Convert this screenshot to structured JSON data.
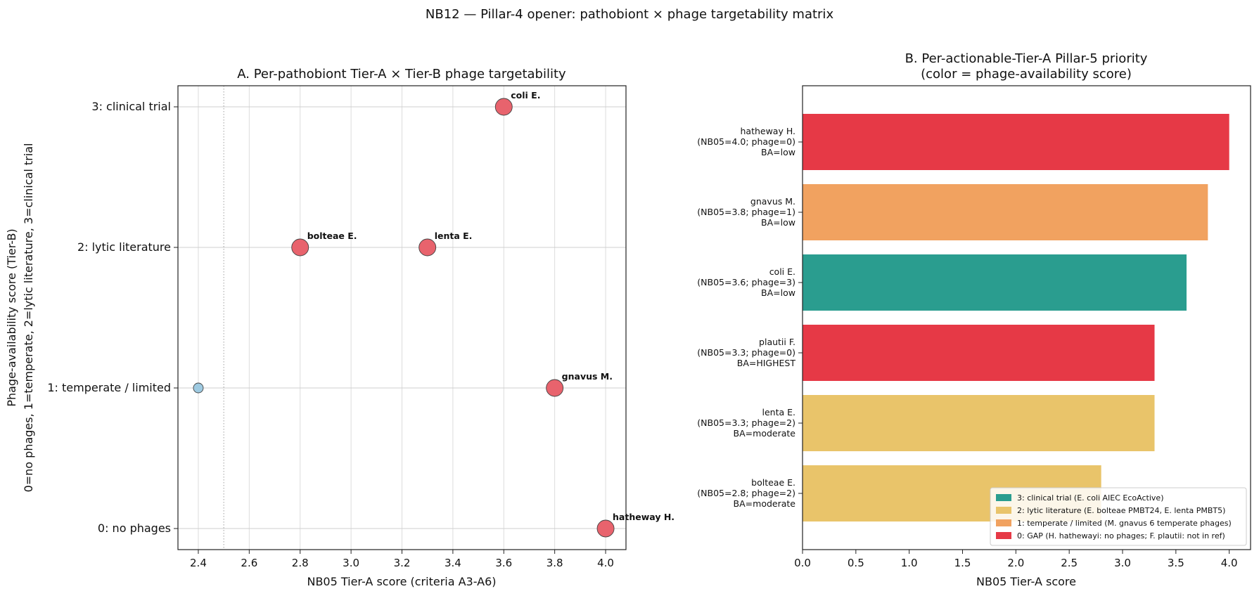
{
  "figure": {
    "suptitle": "NB12 — Pillar-4 opener: pathobiont × phage targetability matrix"
  },
  "chart_data": [
    {
      "panel": "A",
      "type": "scatter",
      "title": "A. Per-pathobiont Tier-A × Tier-B phage targetability",
      "xlabel": "NB05 Tier-A score (criteria A3-A6)",
      "ylabel_line1": "Phage-availability score (Tier-B)",
      "ylabel_line2": "0=no phages, 1=temperate, 2=lytic literature, 3=clinical trial",
      "xlim": [
        2.32,
        4.08
      ],
      "ylim": [
        -0.15,
        3.15
      ],
      "xticks": [
        2.4,
        2.6,
        2.8,
        3.0,
        3.2,
        3.4,
        3.6,
        3.8,
        4.0
      ],
      "yticks": [
        {
          "value": 0,
          "label": "0: no phages"
        },
        {
          "value": 1,
          "label": "1: temperate / limited"
        },
        {
          "value": 2,
          "label": "2: lytic literature"
        },
        {
          "value": 3,
          "label": "3: clinical trial"
        }
      ],
      "grid": true,
      "vline_dotted_x": 2.5,
      "points": [
        {
          "x": 3.6,
          "y": 3,
          "label": "coli E.",
          "color": "#e8636d",
          "size": "large"
        },
        {
          "x": 2.8,
          "y": 2,
          "label": "bolteae E.",
          "color": "#e8636d",
          "size": "large"
        },
        {
          "x": 3.3,
          "y": 2,
          "label": "lenta E.",
          "color": "#e8636d",
          "size": "large"
        },
        {
          "x": 3.8,
          "y": 1,
          "label": "gnavus M.",
          "color": "#e8636d",
          "size": "large"
        },
        {
          "x": 4.0,
          "y": 0,
          "label": "hatheway H.",
          "color": "#e8636d",
          "size": "large"
        },
        {
          "x": 2.4,
          "y": 1,
          "label": "",
          "color": "#9ecae1",
          "size": "small"
        }
      ]
    },
    {
      "panel": "B",
      "type": "bar",
      "orientation": "horizontal",
      "title_line1": "B. Per-actionable-Tier-A Pillar-5 priority",
      "title_line2": "(color = phage-availability score)",
      "xlabel": "NB05 Tier-A score",
      "xlim": [
        0,
        4.2
      ],
      "xticks": [
        "0.0",
        "0.5",
        "1.0",
        "1.5",
        "2.0",
        "2.5",
        "3.0",
        "3.5",
        "4.0"
      ],
      "bars": [
        {
          "name": "hatheway H.",
          "detail": "(NB05=4.0; phage=0)",
          "ba": "BA=low",
          "value": 4.0,
          "color": "#e63946"
        },
        {
          "name": "gnavus M.",
          "detail": "(NB05=3.8; phage=1)",
          "ba": "BA=low",
          "value": 3.8,
          "color": "#f1a260"
        },
        {
          "name": "coli E.",
          "detail": "(NB05=3.6; phage=3)",
          "ba": "BA=low",
          "value": 3.6,
          "color": "#2a9d8f"
        },
        {
          "name": "plautii F.",
          "detail": "(NB05=3.3; phage=0)",
          "ba": "BA=HIGHEST",
          "value": 3.3,
          "color": "#e63946"
        },
        {
          "name": "lenta E.",
          "detail": "(NB05=3.3; phage=2)",
          "ba": "BA=moderate",
          "value": 3.3,
          "color": "#e9c46a"
        },
        {
          "name": "bolteae E.",
          "detail": "(NB05=2.8; phage=2)",
          "ba": "BA=moderate",
          "value": 2.8,
          "color": "#e9c46a"
        }
      ],
      "legend_position": "lower-right",
      "legend": [
        {
          "label": "3: clinical trial (E. coli AIEC EcoActive)",
          "color": "#2a9d8f"
        },
        {
          "label": "2: lytic literature (E. bolteae PMBT24, E. lenta PMBT5)",
          "color": "#e9c46a"
        },
        {
          "label": "1: temperate / limited (M. gnavus 6 temperate phages)",
          "color": "#f1a260"
        },
        {
          "label": "0: GAP (H. hathewayi: no phages; F. plautii: not in ref)",
          "color": "#e63946"
        }
      ]
    }
  ]
}
